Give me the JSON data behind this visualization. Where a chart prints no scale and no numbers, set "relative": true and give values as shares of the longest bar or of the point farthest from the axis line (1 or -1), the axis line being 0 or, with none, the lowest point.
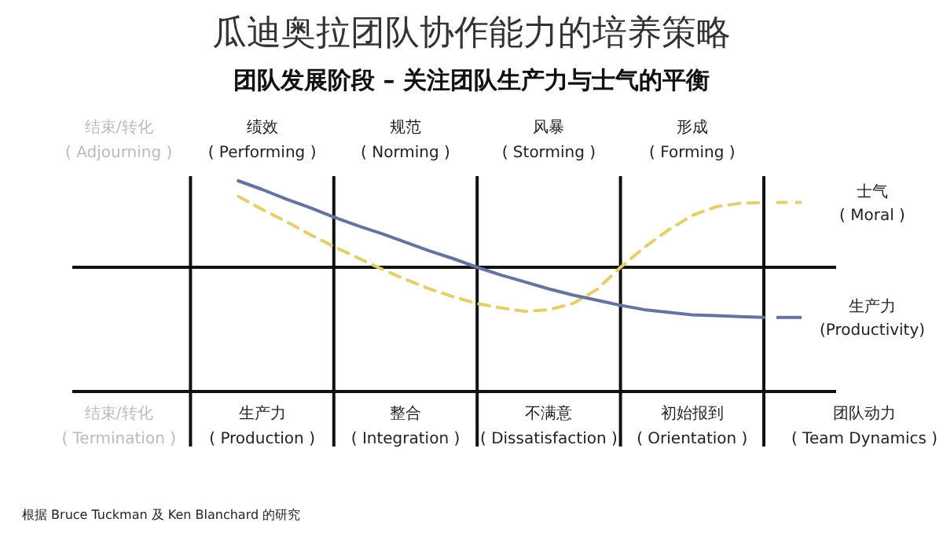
{
  "chart_data": {
    "type": "line",
    "title": "瓜迪奥拉团队协作能力的培养策略",
    "subtitle": "团队发展阶段 – 关注团队生产力与士气的平衡",
    "categories": [
      null,
      null,
      "结束/转化\n( Adjourning )",
      null,
      null,
      null,
      null,
      null,
      "绩效\n( Performing )",
      null,
      null,
      null,
      null,
      null,
      "规范\n( Norming )",
      null,
      null,
      null,
      null,
      null,
      "风暴\n( Storming )",
      null,
      null,
      null,
      null,
      null,
      "形成\n( Forming )",
      null,
      null,
      null
    ],
    "relative": true,
    "grid": true,
    "series": [
      {
        "name": "士气\n( Moral )",
        "color": "#e6cf6a",
        "line_style": "dashed",
        "values": [
          null,
          null,
          null,
          null,
          null,
          null,
          null,
          0.82,
          0.67,
          0.53,
          0.38,
          0.24,
          0.11,
          -0.02,
          -0.14,
          -0.25,
          -0.34,
          -0.42,
          -0.47,
          -0.51,
          -0.49,
          -0.42,
          -0.26,
          0,
          0.23,
          0.43,
          0.6,
          0.7,
          0.74,
          0.75
        ]
      },
      {
        "name": "生产力\n(Productivity)",
        "color": "#6473a0",
        "line_style": "solid",
        "values": [
          null,
          null,
          null,
          null,
          null,
          null,
          null,
          1,
          0.9,
          0.79,
          0.69,
          0.58,
          0.48,
          0.39,
          0.29,
          0.19,
          0.1,
          0,
          -0.09,
          -0.17,
          -0.25,
          -0.32,
          -0.38,
          -0.44,
          -0.49,
          -0.52,
          -0.55,
          -0.56,
          -0.57,
          -0.58
        ]
      }
    ],
    "annotations": [
      "结束/转化\n( Termination )",
      "生产力\n( Production )",
      "整合\n( Integration )",
      "不满意\n( Dissatisfaction )",
      "初始报到\n( Orientation )",
      "团队动力\n( Team Dynamics )",
      "根据 Bruce Tuckman 及 Ken Blanchard 的研究"
    ]
  }
}
